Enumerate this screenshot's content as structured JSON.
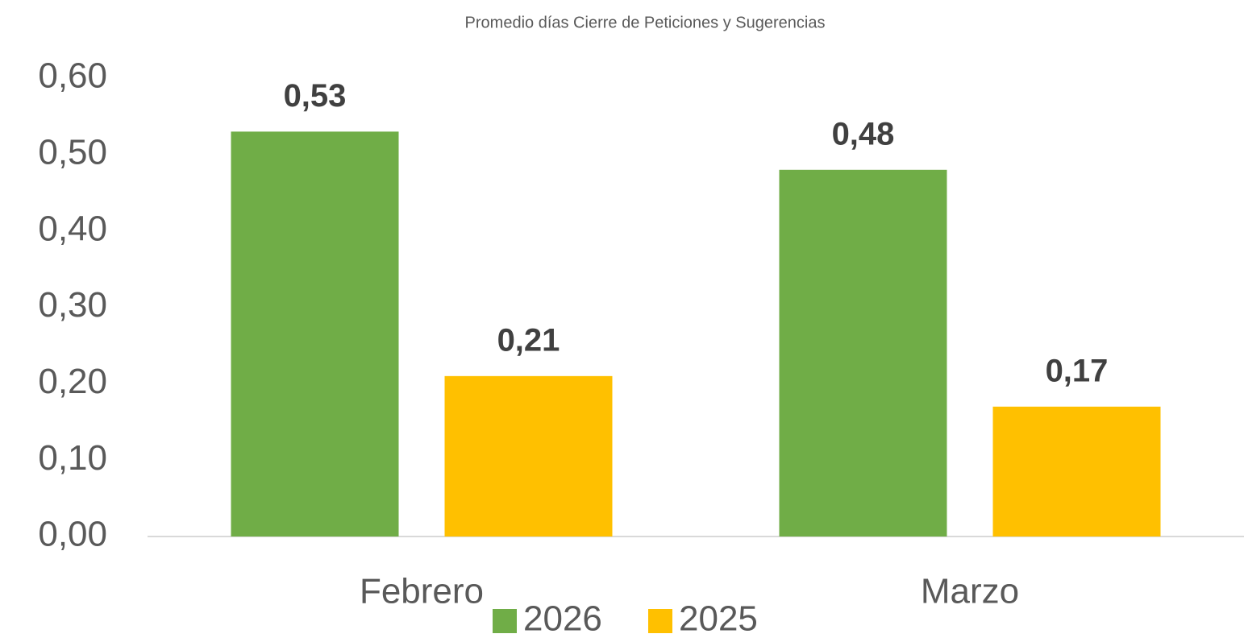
{
  "chart_data": {
    "type": "bar",
    "title": "Promedio días Cierre de Peticiones y Sugerencias",
    "categories": [
      "Febrero",
      "Marzo"
    ],
    "series": [
      {
        "name": "2026",
        "color": "#70ad47",
        "values": [
          0.53,
          0.48
        ],
        "value_labels": [
          "0,53",
          "0,48"
        ]
      },
      {
        "name": "2025",
        "color": "#ffc000",
        "values": [
          0.21,
          0.17
        ],
        "value_labels": [
          "0,21",
          "0,17"
        ]
      }
    ],
    "ylim": [
      0,
      0.6
    ],
    "yticks": [
      {
        "value": 0,
        "label": "0,00"
      },
      {
        "value": 0.1,
        "label": "0,10"
      },
      {
        "value": 0.2,
        "label": "0,20"
      },
      {
        "value": 0.3,
        "label": "0,30"
      },
      {
        "value": 0.4,
        "label": "0,40"
      },
      {
        "value": 0.5,
        "label": "0,50"
      },
      {
        "value": 0.6,
        "label": "0,60"
      }
    ],
    "grid": false,
    "legend": "bottom"
  }
}
